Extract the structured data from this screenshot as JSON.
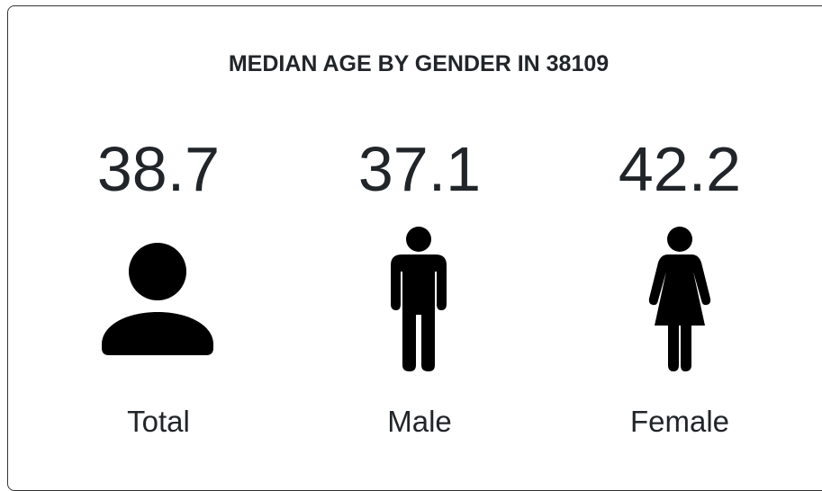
{
  "title": "MEDIAN AGE BY GENDER IN 38109",
  "items": [
    {
      "value": 38.7,
      "label": "Total"
    },
    {
      "value": 37.1,
      "label": "Male"
    },
    {
      "value": 42.2,
      "label": "Female"
    }
  ]
}
